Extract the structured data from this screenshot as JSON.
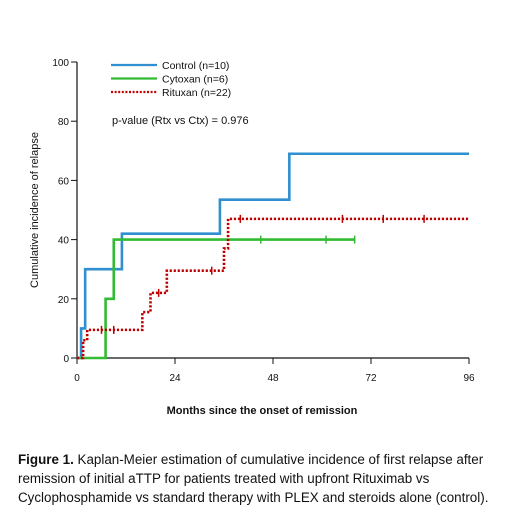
{
  "chart_data": {
    "type": "line",
    "step": true,
    "title": "",
    "xlabel": "Months since the onset of remission",
    "ylabel": "Cumulative incidence of relapse",
    "xlim": [
      0,
      96
    ],
    "ylim": [
      0,
      100
    ],
    "xticks": [
      0,
      24,
      48,
      72,
      96
    ],
    "yticks": [
      0,
      20,
      40,
      60,
      80,
      100
    ],
    "grid": false,
    "legend_position": "top-center",
    "annotation": "p-value (Rtx vs Ctx) = 0.976",
    "series": [
      {
        "name": "Control (n=10)",
        "color": "#2f8fd0",
        "style": "solid",
        "x": [
          0,
          1,
          2,
          11,
          35,
          52,
          96
        ],
        "y": [
          0,
          10,
          30,
          42,
          53.5,
          69,
          69
        ],
        "censored_x": []
      },
      {
        "name": "Cytoxan (n=6)",
        "color": "#33bb33",
        "style": "solid",
        "x": [
          0,
          7,
          9,
          68
        ],
        "y": [
          0,
          20,
          40,
          40
        ],
        "censored_x": [
          45,
          61,
          68
        ]
      },
      {
        "name": "Rituxan (n=22)",
        "color": "#c00000",
        "style": "dotted",
        "x": [
          0,
          1.5,
          2.5,
          14,
          16,
          18,
          22,
          36,
          37,
          96
        ],
        "y": [
          0,
          6,
          9.5,
          9.5,
          15.5,
          22,
          29.5,
          37,
          47,
          47
        ],
        "censored_x": [
          6,
          9,
          20,
          33,
          40,
          65,
          75,
          85
        ]
      }
    ]
  },
  "caption": {
    "label": "Figure 1.",
    "text": " Kaplan-Meier estimation of cumulative incidence of first relapse after remission of initial aTTP for patients treated with upfront Rituximab vs Cyclophosphamide vs standard therapy with PLEX and steroids alone (control)."
  }
}
